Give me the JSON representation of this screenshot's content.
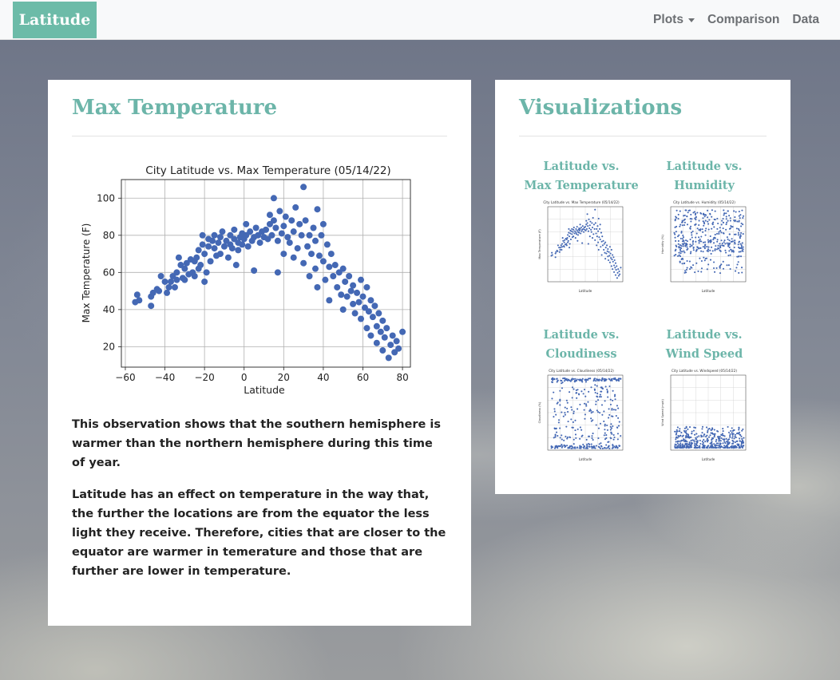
{
  "navbar": {
    "brand": "Latitude",
    "links": [
      {
        "label": "Plots",
        "dropdown": true
      },
      {
        "label": "Comparison"
      },
      {
        "label": "Data"
      }
    ]
  },
  "main": {
    "title": "Max Temperature",
    "paragraphs": [
      "This observation shows that the southern hemisphere is warmer than the northern hemisphere during this time of year.",
      "Latitude has an effect on temperature in the way that, the further the locations are from the equator the less light they receive. Therefore, cities that are closer to the equator are warmer in temerature and those that are further are lower in temperature."
    ]
  },
  "visualizations": {
    "title": "Visualizations",
    "thumbnails": [
      {
        "line1": "Latitude vs.",
        "line2": "Max Temperature",
        "plot_title": "City Latitude vs. Max Temperature (05/14/22)",
        "ylabel": "Max Temperature (F)",
        "xlabel": "Latitude"
      },
      {
        "line1": "Latitude vs.",
        "line2": "Humidity",
        "plot_title": "City Latitude vs. Humidity (05/14/22)",
        "ylabel": "Humidity (%)",
        "xlabel": "Latitude"
      },
      {
        "line1": "Latitude vs.",
        "line2": "Cloudiness",
        "plot_title": "City Latitude vs. Cloudiness (05/14/22)",
        "ylabel": "Cloudiness (%)",
        "xlabel": "Latitude"
      },
      {
        "line1": "Latitude vs.",
        "line2": "Wind Speed",
        "plot_title": "City Latitude vs. Windspeed (05/14/22)",
        "ylabel": "Wind Speed (mph)",
        "xlabel": "Latitude"
      }
    ]
  },
  "colors": {
    "accent": "#6cbba8",
    "marker": "#4468b4"
  },
  "chart_data": [
    {
      "type": "scatter",
      "title": "City Latitude vs. Max Temperature (05/14/22)",
      "xlabel": "Latitude",
      "ylabel": "Max Temperature (F)",
      "xlim": [
        -62,
        84
      ],
      "ylim": [
        9,
        110
      ],
      "xticks": [
        -60,
        -40,
        -20,
        0,
        20,
        40,
        60,
        80
      ],
      "yticks": [
        20,
        40,
        60,
        80,
        100
      ],
      "grid": true,
      "series": [
        {
          "points": [
            [
              -55,
              44
            ],
            [
              -54,
              48
            ],
            [
              -53,
              45
            ],
            [
              -47,
              42
            ],
            [
              -47,
              47
            ],
            [
              -46,
              49
            ],
            [
              -44,
              51
            ],
            [
              -43,
              50
            ],
            [
              -42,
              58
            ],
            [
              -40,
              55
            ],
            [
              -39,
              49
            ],
            [
              -38,
              52
            ],
            [
              -37,
              55
            ],
            [
              -36,
              58
            ],
            [
              -35,
              52
            ],
            [
              -34,
              56
            ],
            [
              -34,
              60
            ],
            [
              -33,
              68
            ],
            [
              -32,
              64
            ],
            [
              -31,
              57
            ],
            [
              -30,
              56
            ],
            [
              -30,
              62
            ],
            [
              -29,
              65
            ],
            [
              -28,
              59
            ],
            [
              -27,
              67
            ],
            [
              -26,
              60
            ],
            [
              -25,
              58
            ],
            [
              -25,
              66
            ],
            [
              -24,
              68
            ],
            [
              -23,
              62
            ],
            [
              -23,
              72
            ],
            [
              -22,
              64
            ],
            [
              -21,
              75
            ],
            [
              -21,
              80
            ],
            [
              -20,
              70
            ],
            [
              -20,
              55
            ],
            [
              -19,
              60
            ],
            [
              -18,
              74
            ],
            [
              -18,
              78
            ],
            [
              -17,
              66
            ],
            [
              -16,
              77
            ],
            [
              -15,
              80
            ],
            [
              -15,
              73
            ],
            [
              -14,
              69
            ],
            [
              -13,
              76
            ],
            [
              -12,
              70
            ],
            [
              -12,
              79
            ],
            [
              -11,
              82
            ],
            [
              -10,
              74
            ],
            [
              -9,
              77
            ],
            [
              -8,
              68
            ],
            [
              -7,
              75
            ],
            [
              -7,
              80
            ],
            [
              -6,
              73
            ],
            [
              -5,
              83
            ],
            [
              -5,
              78
            ],
            [
              -4,
              64
            ],
            [
              -3,
              76
            ],
            [
              -3,
              72
            ],
            [
              -2,
              79
            ],
            [
              -1,
              81
            ],
            [
              -1,
              75
            ],
            [
              0,
              78
            ],
            [
              1,
              86
            ],
            [
              1,
              80
            ],
            [
              2,
              74
            ],
            [
              3,
              82
            ],
            [
              4,
              77
            ],
            [
              5,
              79
            ],
            [
              5,
              61
            ],
            [
              6,
              84
            ],
            [
              7,
              80
            ],
            [
              8,
              76
            ],
            [
              9,
              82
            ],
            [
              10,
              79
            ],
            [
              11,
              83
            ],
            [
              12,
              78
            ],
            [
              13,
              86
            ],
            [
              13,
              91
            ],
            [
              14,
              80
            ],
            [
              15,
              100
            ],
            [
              15,
              88
            ],
            [
              16,
              84
            ],
            [
              17,
              77
            ],
            [
              17,
              60
            ],
            [
              18,
              93
            ],
            [
              19,
              81
            ],
            [
              20,
              85
            ],
            [
              20,
              70
            ],
            [
              21,
              90
            ],
            [
              22,
              79
            ],
            [
              23,
              76
            ],
            [
              24,
              88
            ],
            [
              25,
              82
            ],
            [
              25,
              68
            ],
            [
              26,
              95
            ],
            [
              27,
              73
            ],
            [
              28,
              86
            ],
            [
              29,
              80
            ],
            [
              30,
              106
            ],
            [
              30,
              65
            ],
            [
              31,
              88
            ],
            [
              32,
              74
            ],
            [
              33,
              80
            ],
            [
              33,
              58
            ],
            [
              34,
              70
            ],
            [
              35,
              84
            ],
            [
              36,
              62
            ],
            [
              36,
              77
            ],
            [
              37,
              94
            ],
            [
              37,
              52
            ],
            [
              38,
              69
            ],
            [
              39,
              80
            ],
            [
              40,
              66
            ],
            [
              40,
              86
            ],
            [
              41,
              56
            ],
            [
              42,
              75
            ],
            [
              43,
              63
            ],
            [
              43,
              45
            ],
            [
              44,
              70
            ],
            [
              45,
              58
            ],
            [
              46,
              64
            ],
            [
              47,
              52
            ],
            [
              48,
              60
            ],
            [
              49,
              48
            ],
            [
              50,
              62
            ],
            [
              50,
              40
            ],
            [
              51,
              55
            ],
            [
              52,
              47
            ],
            [
              53,
              58
            ],
            [
              54,
              50
            ],
            [
              55,
              43
            ],
            [
              55,
              53
            ],
            [
              56,
              38
            ],
            [
              57,
              49
            ],
            [
              58,
              44
            ],
            [
              59,
              56
            ],
            [
              59,
              35
            ],
            [
              60,
              47
            ],
            [
              61,
              41
            ],
            [
              62,
              52
            ],
            [
              62,
              30
            ],
            [
              63,
              39
            ],
            [
              64,
              45
            ],
            [
              64,
              26
            ],
            [
              65,
              36
            ],
            [
              66,
              42
            ],
            [
              67,
              31
            ],
            [
              67,
              22
            ],
            [
              68,
              38
            ],
            [
              69,
              28
            ],
            [
              70,
              34
            ],
            [
              70,
              18
            ],
            [
              71,
              25
            ],
            [
              72,
              30
            ],
            [
              73,
              14
            ],
            [
              74,
              21
            ],
            [
              75,
              26
            ],
            [
              76,
              17
            ],
            [
              77,
              23
            ],
            [
              78,
              19
            ],
            [
              80,
              28
            ]
          ]
        }
      ]
    }
  ]
}
